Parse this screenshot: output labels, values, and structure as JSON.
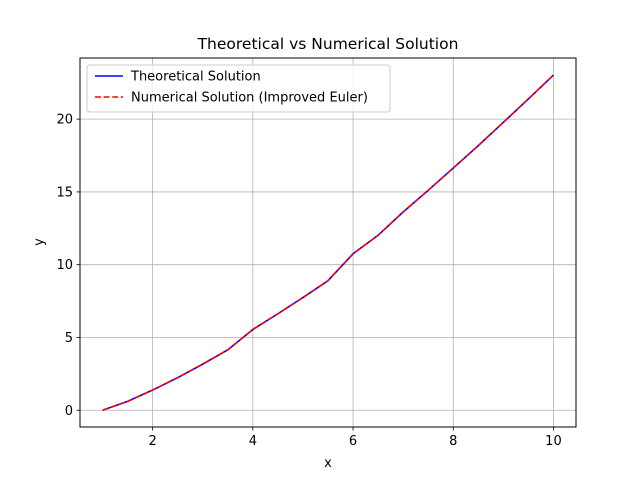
{
  "chart_data": {
    "type": "line",
    "title": "Theoretical vs Numerical Solution",
    "xlabel": "x",
    "ylabel": "y",
    "xlim": [
      0.55,
      10.45
    ],
    "ylim": [
      -1.15,
      24.2
    ],
    "xticks": [
      2,
      4,
      6,
      8,
      10
    ],
    "yticks": [
      0,
      5,
      10,
      15,
      20
    ],
    "grid": true,
    "legend_position": "upper-left",
    "series": [
      {
        "name": "Theoretical Solution",
        "color": "#0000ff",
        "style": "solid",
        "x": [
          1.0,
          1.5,
          2.0,
          2.5,
          3.0,
          3.5,
          4.0,
          4.5,
          5.0,
          5.5,
          6.0,
          6.5,
          7.0,
          7.5,
          8.0,
          8.5,
          9.0,
          9.5,
          10.0
        ],
        "y": [
          0.0,
          0.61,
          1.39,
          2.24,
          3.17,
          4.15,
          5.55,
          6.63,
          7.74,
          8.9,
          10.75,
          12.02,
          13.62,
          15.11,
          16.64,
          18.18,
          19.78,
          21.39,
          23.03
        ]
      },
      {
        "name": "Numerical Solution (Improved Euler)",
        "color": "#ff0000",
        "style": "dashed",
        "x": [
          1.0,
          1.5,
          2.0,
          2.5,
          3.0,
          3.5,
          4.0,
          4.5,
          5.0,
          5.5,
          6.0,
          6.5,
          7.0,
          7.5,
          8.0,
          8.5,
          9.0,
          9.5,
          10.0
        ],
        "y": [
          0.0,
          0.61,
          1.39,
          2.24,
          3.17,
          4.15,
          5.55,
          6.63,
          7.74,
          8.9,
          10.75,
          12.02,
          13.62,
          15.11,
          16.64,
          18.18,
          19.78,
          21.39,
          23.03
        ]
      }
    ]
  }
}
